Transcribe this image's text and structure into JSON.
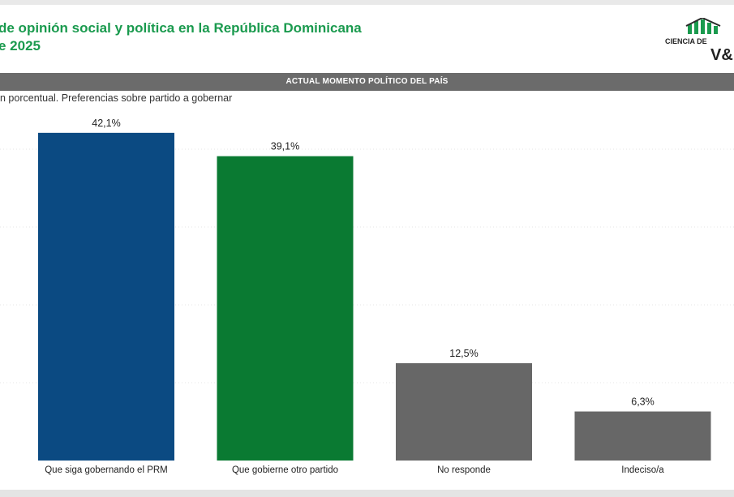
{
  "header": {
    "title_line1": "de opinión social y política en la República Dominicana",
    "title_line2": "e 2025",
    "logo_text_top": "CIENCIA DE",
    "logo_text_bottom": "V&"
  },
  "section_band": "ACTUAL MOMENTO POLÍTICO DEL PAÍS",
  "colors": {
    "title_green": "#1a9a4e",
    "band_gray": "#6b6b6b",
    "prm_blue": "#0b4a82",
    "other_green": "#0a7a32",
    "gray_bar": "#676767"
  },
  "chart_data": {
    "type": "bar",
    "title": "n porcentual. Preferencias sobre partido a gobernar",
    "xlabel": "",
    "ylabel": "",
    "categories": [
      "Que siga gobernando el PRM",
      "Que gobierne otro partido",
      "No responde",
      "Indeciso/a"
    ],
    "values": [
      42.1,
      39.1,
      12.5,
      6.3
    ],
    "data_labels": [
      "42,1%",
      "39,1%",
      "12,5%",
      "6,3%"
    ],
    "bar_colors": [
      "#0b4a82",
      "#0a7a32",
      "#676767",
      "#676767"
    ],
    "ylim": [
      0,
      45
    ],
    "grid": true
  }
}
